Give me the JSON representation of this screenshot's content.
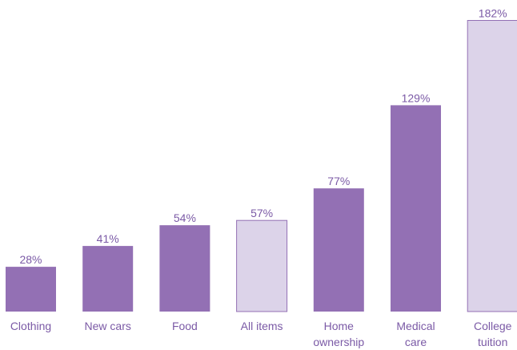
{
  "chart_data": {
    "type": "bar",
    "categories": [
      [
        "Clothing"
      ],
      [
        "New cars"
      ],
      [
        "Food"
      ],
      [
        "All items"
      ],
      [
        "Home",
        "ownership"
      ],
      [
        "Medical",
        "care"
      ],
      [
        "College",
        "tuition"
      ]
    ],
    "values": [
      28,
      41,
      54,
      57,
      77,
      129,
      182
    ],
    "value_labels": [
      "28%",
      "41%",
      "54%",
      "57%",
      "77%",
      "129%",
      "182%"
    ],
    "highlighted": [
      false,
      false,
      false,
      true,
      false,
      false,
      true
    ],
    "ylim": [
      0,
      190
    ],
    "grid": false,
    "colors": {
      "bar": "#9370b4",
      "bar_highlight": "#dcd3e9",
      "bar_highlight_border": "#9370b4",
      "value_text": "#7b5aa6",
      "category_text": "#7b5aa6"
    }
  }
}
